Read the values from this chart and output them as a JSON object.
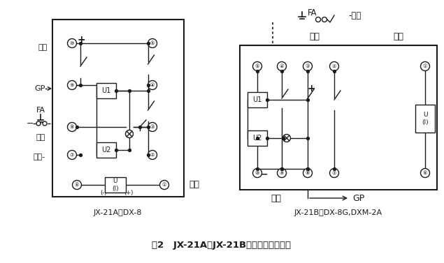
{
  "bg_color": "#ffffff",
  "line_color": "#1a1a1a",
  "title_left": "JX-21A代DX-8",
  "title_right": "JX-21B代DX-8G,DXM-2A",
  "caption": "图2   JX-21A、JX-21B接线图（正视图）",
  "label_dianyuan": "电源",
  "label_gp": "GP",
  "label_fa": "FA",
  "label_fuhui": "复归",
  "label_dianyuan_neg": "电源-",
  "label_qidong": "启动",
  "label_fuhui2": "-复归"
}
